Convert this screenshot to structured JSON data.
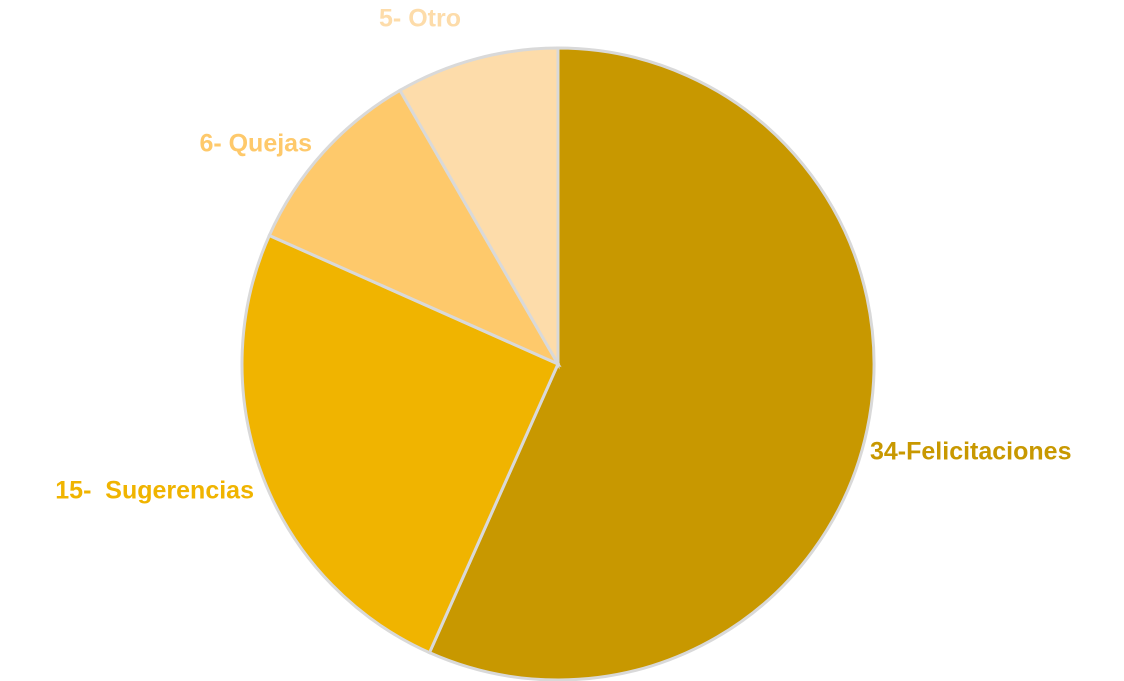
{
  "chart_data": {
    "type": "pie",
    "values": [
      34,
      15,
      6,
      5
    ],
    "value_labels": [
      "34-Felicitaciones",
      "15-  Sugerencias",
      "6- Quejas",
      "5- Otro"
    ],
    "colors": [
      "#c89800",
      "#f0b400",
      "#fec96b",
      "#fddcaa"
    ],
    "start_angle": 0,
    "direction": "clockwise"
  }
}
